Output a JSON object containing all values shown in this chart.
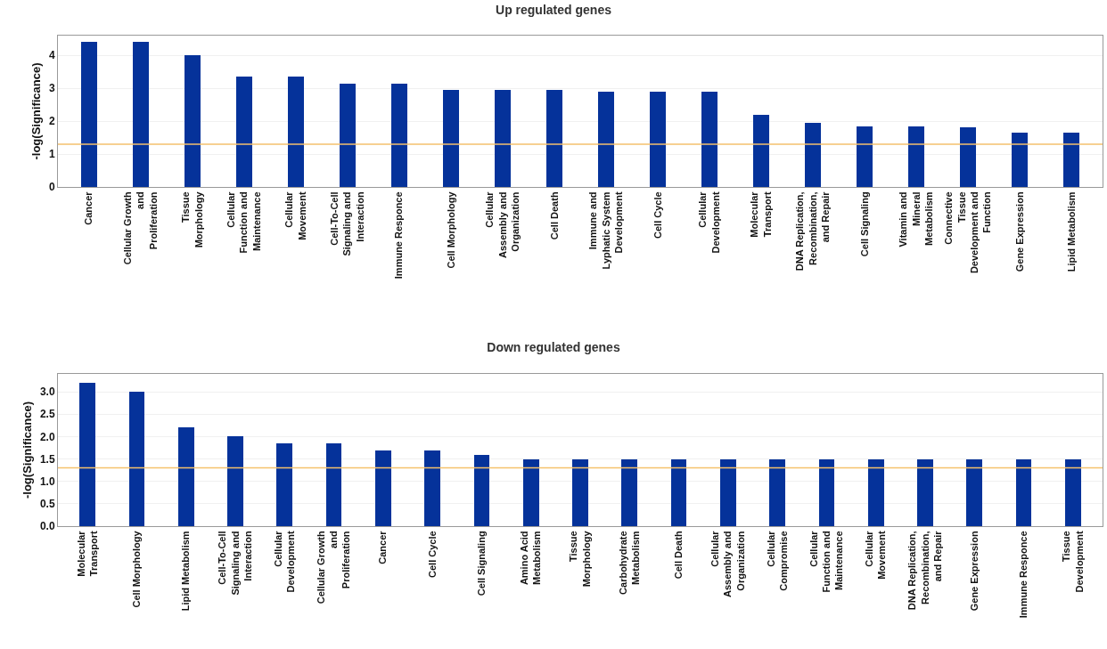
{
  "chart_data": [
    {
      "type": "bar",
      "title": "Up regulated genes",
      "ylabel": "-log(Significance)",
      "categories": [
        "Cancer",
        "Cellular Growth and Proliferation",
        "Tissue Morphology",
        "Cellular Function and Maintenance",
        "Cellular Movement",
        "Cell-To-Cell Signaling and Interaction",
        "Immune Responce",
        "Cell Morphology",
        "Cellular Assembly and Organization",
        "Cell Death",
        "Immune and Lyphatic System Development",
        "Cell Cycle",
        "Cellular Development",
        "Molecular Transport",
        "DNA Replication, Recombination, and Repair",
        "Cell Signaling",
        "Vitamin and Mineral Metabolism",
        "Connective Tissue Development and Function",
        "Gene Expression",
        "Lipid Metabolism"
      ],
      "values": [
        4.4,
        4.4,
        4.0,
        3.35,
        3.35,
        3.15,
        3.15,
        2.95,
        2.95,
        2.95,
        2.9,
        2.9,
        2.9,
        2.2,
        1.95,
        1.85,
        1.85,
        1.8,
        1.65,
        1.65
      ],
      "color": "#05329a",
      "ylim": [
        0,
        4.6
      ],
      "yticks": [
        0,
        1,
        2,
        3,
        4
      ],
      "grid": "y",
      "ref_lines": [
        {
          "axis": "y",
          "value": 1.3,
          "color": "#f5c16c"
        }
      ]
    },
    {
      "type": "bar",
      "title": "Down regulated genes",
      "ylabel": "-log(Significance)",
      "categories": [
        "Molecular Transport",
        "Cell Morphology",
        "Lipid Metabolism",
        "Cell-To-Cell Signaling and Interaction",
        "Cellular Development",
        "Cellular Growth and Proliferation",
        "Cancer",
        "Cell Cycle",
        "Cell Signaling",
        "Amino Acid Metabolism",
        "Tissue Morphology",
        "Carbohydrate Metabolism",
        "Cell Death",
        "Cellular Assembly and Organization",
        "Cellular Compromise",
        "Cellular Function and Maintenance",
        "Cellular Movement",
        "DNA Replication, Recombination, and Repair",
        "Gene Expression",
        "Immune Responce",
        "Tissue Development"
      ],
      "values": [
        3.2,
        3.0,
        2.2,
        2.0,
        1.85,
        1.85,
        1.7,
        1.7,
        1.6,
        1.5,
        1.5,
        1.5,
        1.5,
        1.5,
        1.5,
        1.5,
        1.5,
        1.5,
        1.5,
        1.5,
        1.5
      ],
      "color": "#05329a",
      "ylim": [
        0,
        3.4
      ],
      "yticks": [
        {
          "value": 0,
          "label": "0.0"
        },
        {
          "value": 0.5,
          "label": "0.5"
        },
        {
          "value": 1,
          "label": "1.0"
        },
        {
          "value": 1.5,
          "label": "1.5"
        },
        {
          "value": 2,
          "label": "2.0"
        },
        {
          "value": 2.5,
          "label": "2.5"
        },
        {
          "value": 3,
          "label": "3.0"
        }
      ],
      "grid": "y",
      "ref_lines": [
        {
          "axis": "y",
          "value": 1.3,
          "color": "#f5c16c"
        }
      ]
    }
  ]
}
